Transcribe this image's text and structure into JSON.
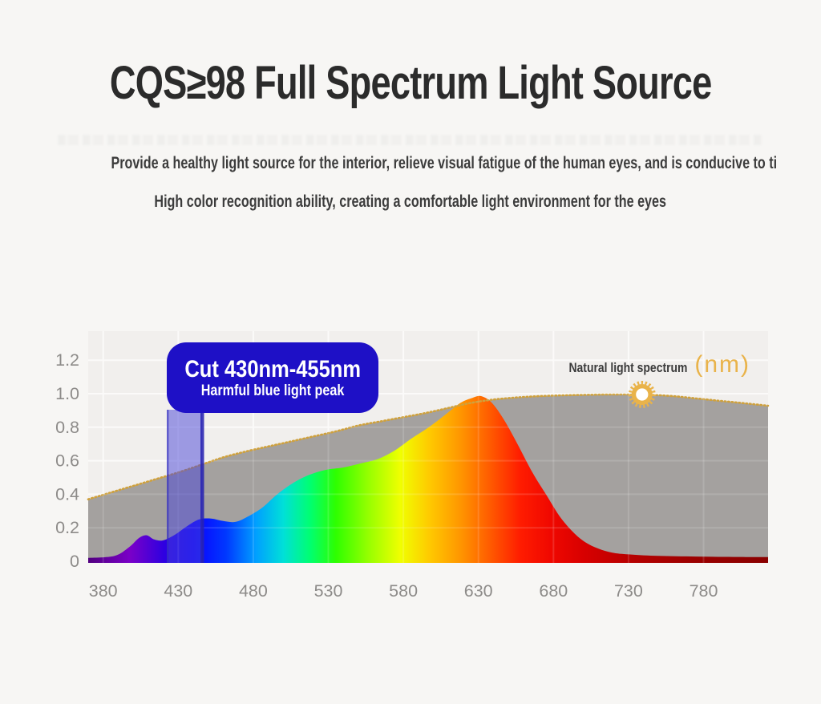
{
  "page": {
    "title": "CQS≥98 Full Spectrum Light Source",
    "subtitle_line1": "Provide a healthy light source for the interior, relieve visual fatigue of the human eyes, and is conducive to ti",
    "subtitle_line2": "High color recognition ability, creating a comfortable light environment for the eyes"
  },
  "chart_data": {
    "type": "area",
    "title": "",
    "xlabel": "",
    "ylabel": "",
    "x_ticks": [
      380,
      430,
      480,
      530,
      580,
      630,
      680,
      730,
      780
    ],
    "y_ticks": [
      "0",
      "0.2",
      "0.4",
      "0.6",
      "0.8",
      "1.0",
      "1.2"
    ],
    "x_range": [
      370,
      823
    ],
    "y_range": [
      0,
      1.38
    ],
    "grid": true,
    "legend_position": "none",
    "annotations": {
      "natural_label": "Natural light spectrum",
      "unit_label": "(nm)",
      "cut_callout_title": "Cut 430nm-455nm",
      "cut_callout_subtitle": "Harmful blue light peak",
      "cut_band_nm": [
        430,
        455
      ],
      "sun_marker": {
        "nm": 739,
        "value": 0.995
      }
    },
    "series": [
      {
        "id": "natural-light",
        "label": "Natural light spectrum",
        "style": "solid gray area with gold dotted top edge",
        "points": [
          [
            370,
            0.37
          ],
          [
            385,
            0.41
          ],
          [
            400,
            0.45
          ],
          [
            415,
            0.49
          ],
          [
            430,
            0.53
          ],
          [
            445,
            0.575
          ],
          [
            460,
            0.62
          ],
          [
            475,
            0.655
          ],
          [
            490,
            0.685
          ],
          [
            505,
            0.715
          ],
          [
            520,
            0.745
          ],
          [
            535,
            0.775
          ],
          [
            550,
            0.81
          ],
          [
            565,
            0.835
          ],
          [
            580,
            0.86
          ],
          [
            595,
            0.885
          ],
          [
            610,
            0.915
          ],
          [
            625,
            0.945
          ],
          [
            640,
            0.965
          ],
          [
            655,
            0.977
          ],
          [
            670,
            0.985
          ],
          [
            685,
            0.99
          ],
          [
            700,
            0.993
          ],
          [
            715,
            0.995
          ],
          [
            730,
            0.995
          ],
          [
            745,
            0.993
          ],
          [
            760,
            0.985
          ],
          [
            775,
            0.972
          ],
          [
            790,
            0.958
          ],
          [
            805,
            0.945
          ],
          [
            823,
            0.928
          ]
        ]
      },
      {
        "id": "light-source",
        "label": "",
        "style": "area filled with visible-spectrum gradient",
        "points": [
          [
            370,
            0.02
          ],
          [
            382,
            0.025
          ],
          [
            390,
            0.04
          ],
          [
            398,
            0.09
          ],
          [
            404,
            0.14
          ],
          [
            409,
            0.155
          ],
          [
            414,
            0.13
          ],
          [
            420,
            0.125
          ],
          [
            428,
            0.16
          ],
          [
            436,
            0.21
          ],
          [
            444,
            0.25
          ],
          [
            452,
            0.255
          ],
          [
            460,
            0.24
          ],
          [
            468,
            0.235
          ],
          [
            476,
            0.265
          ],
          [
            486,
            0.32
          ],
          [
            496,
            0.4
          ],
          [
            507,
            0.47
          ],
          [
            517,
            0.515
          ],
          [
            528,
            0.545
          ],
          [
            540,
            0.56
          ],
          [
            552,
            0.585
          ],
          [
            563,
            0.61
          ],
          [
            574,
            0.66
          ],
          [
            585,
            0.73
          ],
          [
            597,
            0.8
          ],
          [
            608,
            0.875
          ],
          [
            618,
            0.945
          ],
          [
            626,
            0.975
          ],
          [
            632,
            0.985
          ],
          [
            639,
            0.945
          ],
          [
            647,
            0.845
          ],
          [
            656,
            0.7
          ],
          [
            666,
            0.53
          ],
          [
            675,
            0.4
          ],
          [
            684,
            0.27
          ],
          [
            693,
            0.175
          ],
          [
            701,
            0.115
          ],
          [
            710,
            0.075
          ],
          [
            720,
            0.05
          ],
          [
            732,
            0.04
          ],
          [
            750,
            0.032
          ],
          [
            775,
            0.028
          ],
          [
            800,
            0.026
          ],
          [
            823,
            0.025
          ]
        ]
      }
    ],
    "spectrum_gradient_stops": [
      [
        370,
        "#52007f"
      ],
      [
        398,
        "#7a00c8"
      ],
      [
        420,
        "#3000e0"
      ],
      [
        440,
        "#0b00ff"
      ],
      [
        462,
        "#0038ff"
      ],
      [
        482,
        "#00a0ff"
      ],
      [
        500,
        "#00e0d8"
      ],
      [
        518,
        "#00ff70"
      ],
      [
        535,
        "#2eff00"
      ],
      [
        558,
        "#9cff00"
      ],
      [
        578,
        "#f0ff00"
      ],
      [
        598,
        "#ffc800"
      ],
      [
        618,
        "#ff9600"
      ],
      [
        640,
        "#ff5400"
      ],
      [
        658,
        "#ff1c00"
      ],
      [
        678,
        "#f00800"
      ],
      [
        700,
        "#d80000"
      ],
      [
        735,
        "#b40000"
      ],
      [
        780,
        "#980000"
      ],
      [
        823,
        "#8a0000"
      ]
    ],
    "colors": {
      "natural_gray": "#a4a19f",
      "dotted_edge": "#cfa13d",
      "accent_blue": "#1e10c6",
      "gold_text": "#e9b34a",
      "cut_band_fill": "rgba(72,68,215,0.5)",
      "cut_band_edge": "rgba(40,35,178,0.88)",
      "axis_text": "#8d8b89",
      "plot_bg": "#f1efed",
      "grid_line": "#fbfaf8"
    }
  }
}
